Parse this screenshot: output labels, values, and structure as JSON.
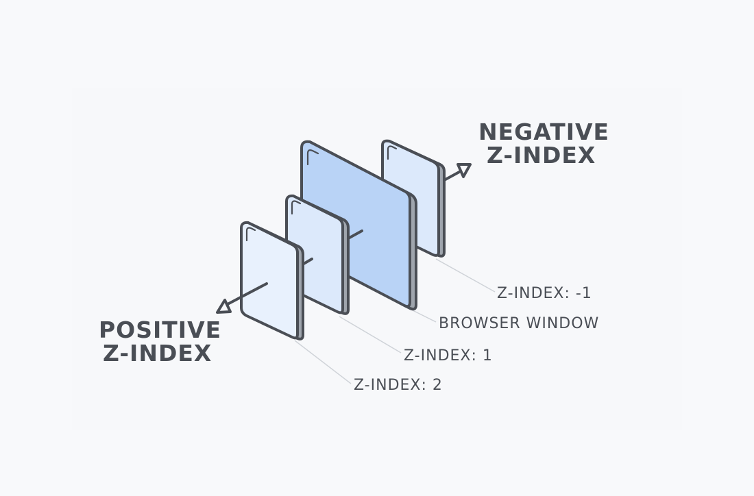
{
  "headings": {
    "negative": [
      "NEGATIVE",
      "Z-INDEX"
    ],
    "positive": [
      "POSITIVE",
      "Z-INDEX"
    ]
  },
  "labels": {
    "z_neg1": "Z-INDEX: -1",
    "browser_window": "BROWSER WINDOW",
    "z_1": "Z-INDEX: 1",
    "z_2": "Z-INDEX: 2"
  },
  "layers": [
    {
      "name": "z-index -1",
      "color": "#dce9fb"
    },
    {
      "name": "browser window",
      "color": "#b9d3f6"
    },
    {
      "name": "z-index 1",
      "color": "#dce9fb"
    },
    {
      "name": "z-index 2",
      "color": "#e8f1fd"
    }
  ],
  "colors": {
    "outline": "#4a4e55",
    "edge": "#9fa5ad",
    "leader": "#cfd3d8",
    "background": "#f8f9fb"
  },
  "icons": {
    "arrow_negative": "triangle-arrow-icon",
    "arrow_positive": "triangle-arrow-icon"
  }
}
